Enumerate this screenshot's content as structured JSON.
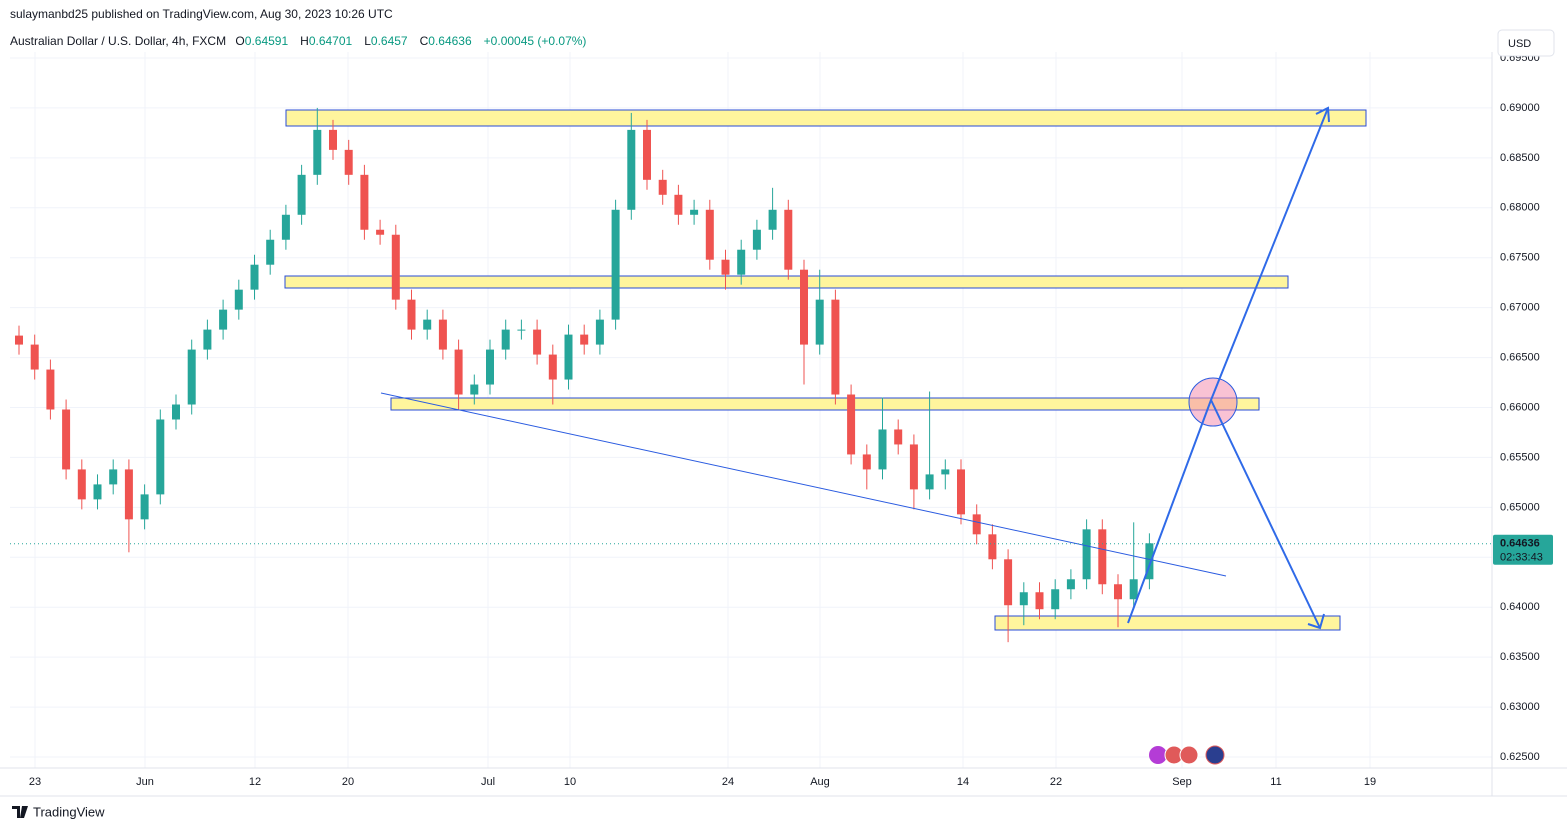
{
  "header": {
    "publisher": "sulaymanbd25 published on TradingView.com, Aug 30, 2023 10:26 UTC",
    "symbol": "Australian Dollar / U.S. Dollar, 4h, FXCM",
    "ohlc": [
      {
        "label": "O",
        "value": 0.64591
      },
      {
        "label": "H",
        "value": 0.64701
      },
      {
        "label": "L",
        "value": 0.6457
      },
      {
        "label": "C",
        "value": 0.64636
      }
    ],
    "change": "+0.00045 (+0.07%)",
    "currency": "USD"
  },
  "footer": {
    "brand": "TradingView"
  },
  "chart_data": {
    "type": "candlestick",
    "x_labels": [
      "23",
      "Jun",
      "12",
      "20",
      "Jul",
      "10",
      "24",
      "Aug",
      "14",
      "22",
      "Sep",
      "11",
      "19"
    ],
    "up_color": "#26a69a",
    "down_color": "#ef5350",
    "open": [
      0.6672,
      0.6663,
      0.6638,
      0.6598,
      0.6538,
      0.6508,
      0.6523,
      0.6538,
      0.6488,
      0.6513,
      0.6588,
      0.6603,
      0.6658,
      0.6678,
      0.6698,
      0.6718,
      0.6743,
      0.6768,
      0.6793,
      0.6833,
      0.6878,
      0.6858,
      0.6833,
      0.6778,
      0.6773,
      0.6708,
      0.6678,
      0.6688,
      0.6658,
      0.6613,
      0.6623,
      0.6658,
      0.6678,
      0.6678,
      0.6653,
      0.6628,
      0.6673,
      0.6663,
      0.6688,
      0.6798,
      0.6878,
      0.6828,
      0.6813,
      0.6793,
      0.6798,
      0.6748,
      0.6733,
      0.6758,
      0.6778,
      0.6798,
      0.6738,
      0.6663,
      0.6708,
      0.6613,
      0.6553,
      0.6538,
      0.6578,
      0.6563,
      0.6518,
      0.6533,
      0.6538,
      0.6493,
      0.6473,
      0.6448,
      0.6402,
      0.6415,
      0.6398,
      0.6418,
      0.6428,
      0.6478,
      0.6423,
      0.6408,
      0.6428
    ],
    "high": [
      0.6682,
      0.6673,
      0.6648,
      0.6608,
      0.6548,
      0.6533,
      0.6548,
      0.6548,
      0.6523,
      0.6598,
      0.6613,
      0.6668,
      0.6688,
      0.6708,
      0.6728,
      0.6753,
      0.6778,
      0.6803,
      0.6843,
      0.69,
      0.6888,
      0.6868,
      0.6843,
      0.6788,
      0.6783,
      0.6718,
      0.6698,
      0.6698,
      0.6668,
      0.6633,
      0.6668,
      0.6688,
      0.6688,
      0.6688,
      0.6663,
      0.6683,
      0.6683,
      0.6698,
      0.6808,
      0.6895,
      0.6888,
      0.6838,
      0.6823,
      0.6808,
      0.6808,
      0.6758,
      0.6768,
      0.6788,
      0.682,
      0.6808,
      0.6748,
      0.6738,
      0.6718,
      0.6623,
      0.6563,
      0.661,
      0.6588,
      0.6573,
      0.6616,
      0.6548,
      0.6548,
      0.6503,
      0.6483,
      0.6458,
      0.6425,
      0.6425,
      0.6428,
      0.6438,
      0.6488,
      0.6488,
      0.6433,
      0.6485,
      0.6474
    ],
    "low": [
      0.6653,
      0.6628,
      0.6588,
      0.6528,
      0.6498,
      0.6498,
      0.6513,
      0.6455,
      0.6478,
      0.6503,
      0.6578,
      0.6593,
      0.6648,
      0.6668,
      0.6688,
      0.6708,
      0.6733,
      0.6758,
      0.6783,
      0.6823,
      0.6848,
      0.6823,
      0.6768,
      0.6763,
      0.6698,
      0.6668,
      0.6668,
      0.6648,
      0.6598,
      0.6603,
      0.6613,
      0.6648,
      0.6668,
      0.6643,
      0.6603,
      0.6618,
      0.6653,
      0.6653,
      0.6678,
      0.6788,
      0.6818,
      0.6803,
      0.6783,
      0.6783,
      0.6738,
      0.6718,
      0.6723,
      0.6748,
      0.6768,
      0.6728,
      0.6623,
      0.6653,
      0.6603,
      0.6543,
      0.6518,
      0.6528,
      0.6553,
      0.6498,
      0.6508,
      0.6518,
      0.6483,
      0.6463,
      0.6438,
      0.6365,
      0.6382,
      0.6388,
      0.6388,
      0.6408,
      0.6418,
      0.6413,
      0.638,
      0.6398,
      0.6418
    ],
    "close": [
      0.6663,
      0.6638,
      0.6598,
      0.6538,
      0.6508,
      0.6523,
      0.6538,
      0.6488,
      0.6513,
      0.6588,
      0.6603,
      0.6658,
      0.6678,
      0.6698,
      0.6718,
      0.6743,
      0.6768,
      0.6793,
      0.6833,
      0.6878,
      0.6858,
      0.6833,
      0.6778,
      0.6773,
      0.6708,
      0.6678,
      0.6688,
      0.6658,
      0.6613,
      0.6623,
      0.6658,
      0.6678,
      0.6678,
      0.6653,
      0.6628,
      0.6673,
      0.6663,
      0.6688,
      0.6798,
      0.6878,
      0.6828,
      0.6813,
      0.6793,
      0.6798,
      0.6748,
      0.6733,
      0.6758,
      0.6778,
      0.6798,
      0.6738,
      0.6663,
      0.6708,
      0.6613,
      0.6553,
      0.6538,
      0.6578,
      0.6563,
      0.6518,
      0.6533,
      0.6538,
      0.6493,
      0.6473,
      0.6448,
      0.6402,
      0.6415,
      0.6398,
      0.6418,
      0.6428,
      0.6478,
      0.6423,
      0.6408,
      0.6428,
      0.6464
    ],
    "last_price": 0.64636,
    "countdown": "02:33:43",
    "ylim": [
      0.6239,
      0.6956
    ],
    "yticks": [
      {
        "value": 0.625,
        "label": "0.62500"
      },
      {
        "value": 0.63,
        "label": "0.63000"
      },
      {
        "value": 0.635,
        "label": "0.63500"
      },
      {
        "value": 0.64,
        "label": "0.64000"
      },
      {
        "value": 0.645,
        "label": "0.64500"
      },
      {
        "value": 0.65,
        "label": "0.65000"
      },
      {
        "value": 0.655,
        "label": "0.65500"
      },
      {
        "value": 0.66,
        "label": "0.66000"
      },
      {
        "value": 0.665,
        "label": "0.66500"
      },
      {
        "value": 0.67,
        "label": "0.67000"
      },
      {
        "value": 0.675,
        "label": "0.67500"
      },
      {
        "value": 0.68,
        "label": "0.68000"
      },
      {
        "value": 0.685,
        "label": "0.68500"
      },
      {
        "value": 0.69,
        "label": "0.69000"
      },
      {
        "value": 0.695,
        "label": "0.69500"
      }
    ],
    "grid": true
  }
}
